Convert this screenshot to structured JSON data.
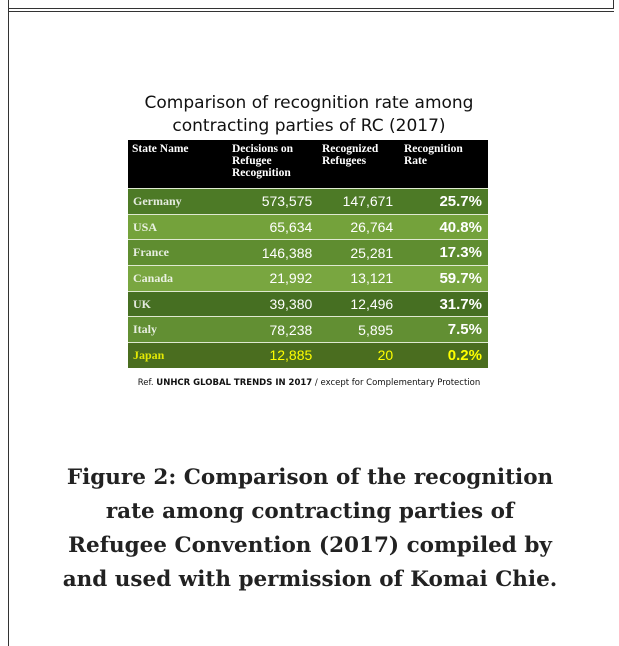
{
  "figure": {
    "title_lines": [
      "Comparison of recognition rate among",
      "contracting parties of RC (2017)"
    ],
    "table": {
      "header": [
        "State Name",
        "Decisions on Refugee Recognition",
        "Recognized Refugees",
        "Recognition Rate"
      ],
      "rows": [
        [
          "Germany",
          "573,575",
          "147,671",
          "25.7%"
        ],
        [
          "USA",
          "65,634",
          "26,764",
          "40.8%"
        ],
        [
          "France",
          "146,388",
          "25,281",
          "17.3%"
        ],
        [
          "Canada",
          "21,992",
          "13,121",
          "59.7%"
        ],
        [
          "UK",
          "39,380",
          "12,496",
          "31.7%"
        ],
        [
          "Italy",
          "78,238",
          "5,895",
          "7.5%"
        ],
        [
          "Japan",
          "12,885",
          "20",
          "0.2%"
        ]
      ]
    },
    "ref": {
      "prefix": "Ref.",
      "source": "UNHCR  GLOBAL TRENDS  IN 2017",
      "note": "/  except for Complementary Protection"
    },
    "caption_lines": [
      "Figure 2: Comparison of the recognition",
      "rate among contracting parties of",
      "Refugee Convention (2017) compiled by",
      "and used with permission of Komai Chie."
    ]
  }
}
